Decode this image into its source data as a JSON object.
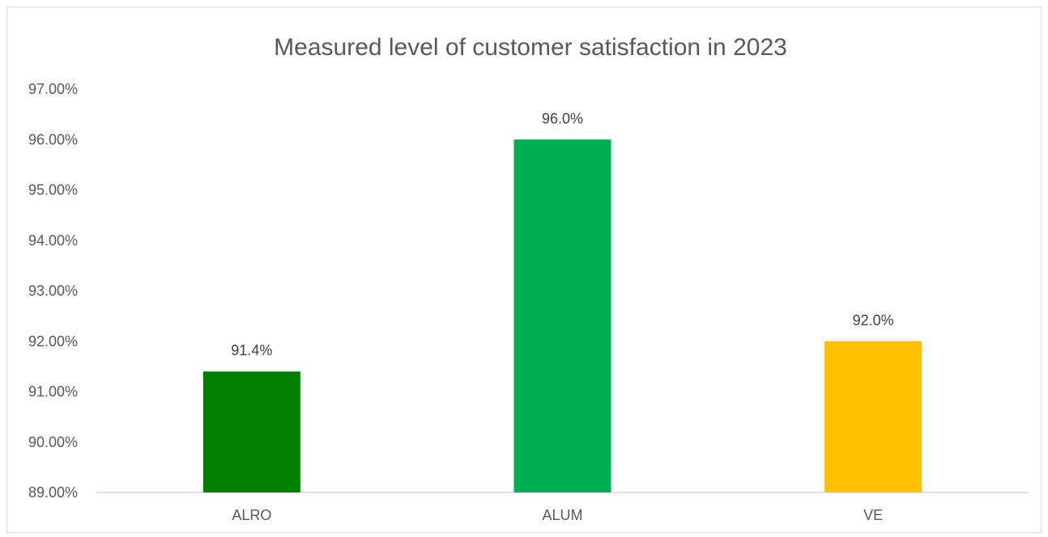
{
  "chart_data": {
    "type": "bar",
    "title": "Measured level of customer satisfaction in 2023",
    "categories": [
      "ALRO",
      "ALUM",
      "VE"
    ],
    "values": [
      91.4,
      96.0,
      92.0
    ],
    "value_labels": [
      "91.4%",
      "96.0%",
      "92.0%"
    ],
    "colors": [
      "#008000",
      "#00b050",
      "#ffc000"
    ],
    "ylim": [
      89,
      97
    ],
    "yticks": [
      "89.00%",
      "90.00%",
      "91.00%",
      "92.00%",
      "93.00%",
      "94.00%",
      "95.00%",
      "96.00%",
      "97.00%"
    ],
    "xlabel": "",
    "ylabel": "",
    "grid": false,
    "legend": "none"
  }
}
